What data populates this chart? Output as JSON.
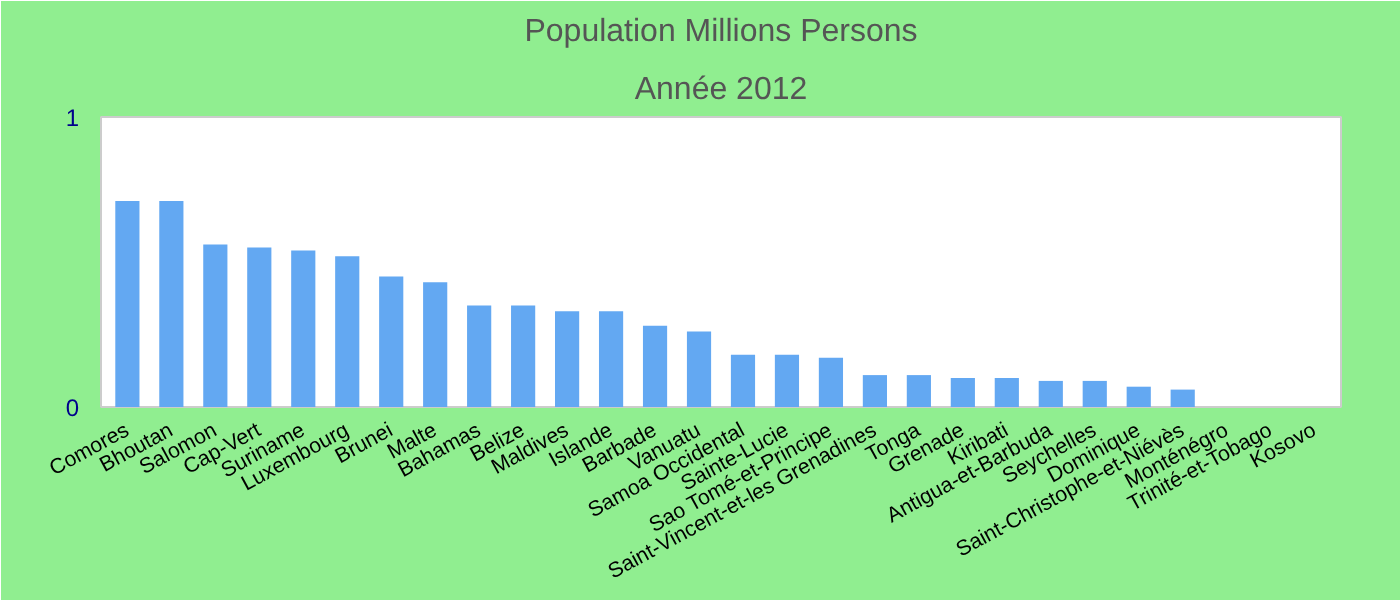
{
  "chart_data": {
    "type": "bar",
    "title": "Population Millions Persons",
    "subtitle": "Année 2012",
    "categories": [
      "Comores",
      "Bhoutan",
      "Salomon",
      "Cap-Vert",
      "Suriname",
      "Luxembourg",
      "Brunei",
      "Malte",
      "Bahamas",
      "Belize",
      "Maldives",
      "Islande",
      "Barbade",
      "Vanuatu",
      "Samoa Occidental",
      "Sainte-Lucie",
      "Sao Tomé-et-Principe",
      "Saint-Vincent-et-les Grenadines",
      "Tonga",
      "Grenade",
      "Kiribati",
      "Antigua-et-Barbuda",
      "Seychelles",
      "Dominique",
      "Saint-Christophe-et-Niévès",
      "Monténégro",
      "Trinité-et-Tobago",
      "Kosovo"
    ],
    "values": [
      0.71,
      0.71,
      0.56,
      0.55,
      0.54,
      0.52,
      0.45,
      0.43,
      0.35,
      0.35,
      0.33,
      0.33,
      0.28,
      0.26,
      0.18,
      0.18,
      0.17,
      0.11,
      0.11,
      0.1,
      0.1,
      0.09,
      0.09,
      0.07,
      0.06,
      null,
      null,
      null
    ],
    "color": "#63a8f2",
    "ylim": [
      0,
      1
    ],
    "yticks": [
      0,
      1
    ],
    "grid": false
  }
}
